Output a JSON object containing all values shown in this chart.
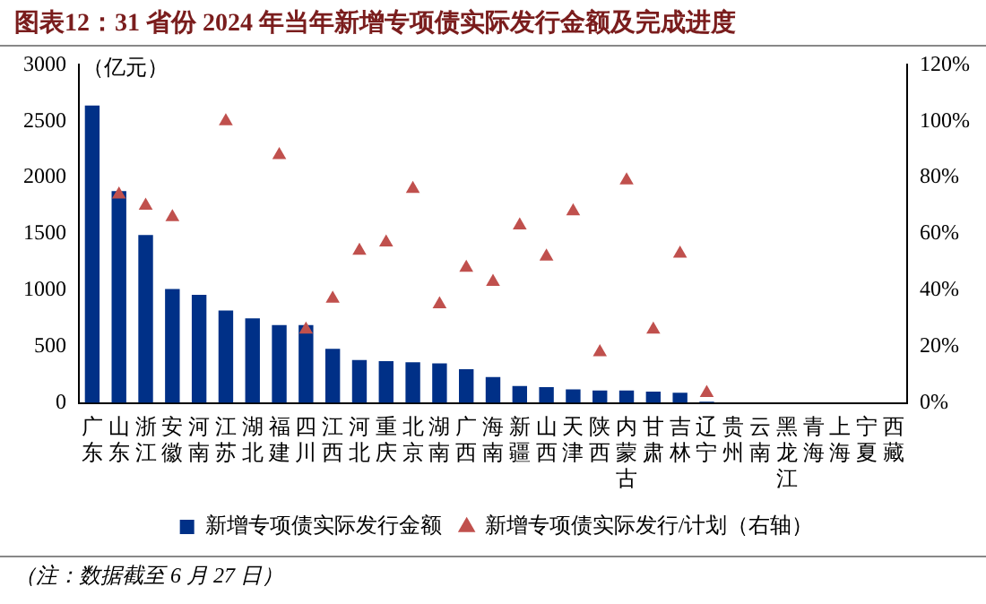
{
  "chart_data": {
    "type": "bar",
    "title": "图表12：31 省份 2024 年当年新增专项债实际发行金额及完成进度",
    "ylabel": "（亿元）",
    "categories": [
      "广东",
      "山东",
      "浙江",
      "安徽",
      "河南",
      "江苏",
      "湖北",
      "福建",
      "四川",
      "江西",
      "河北",
      "重庆",
      "北京",
      "湖南",
      "广西",
      "海南",
      "新疆",
      "山西",
      "天津",
      "陕西",
      "内蒙古",
      "甘肃",
      "吉林",
      "辽宁",
      "贵州",
      "云南",
      "黑龙江",
      "青海",
      "上海",
      "宁夏",
      "西藏"
    ],
    "series": [
      {
        "name": "新增专项债实际发行金额",
        "color": "#003087",
        "values": [
          2640,
          1880,
          1490,
          1010,
          960,
          820,
          750,
          690,
          690,
          480,
          380,
          370,
          360,
          350,
          300,
          230,
          150,
          140,
          120,
          110,
          110,
          100,
          90,
          10,
          null,
          null,
          null,
          null,
          null,
          null,
          null
        ]
      },
      {
        "name": "新增专项债实际发行/计划（右轴）",
        "type": "scatter",
        "axis": "y2",
        "marker": "triangle",
        "color": "#c0504d",
        "values": [
          null,
          74,
          70,
          66,
          null,
          100,
          null,
          88,
          26,
          37,
          54,
          57,
          76,
          35,
          48,
          43,
          63,
          52,
          68,
          18,
          79,
          26,
          53,
          3.5,
          null,
          null,
          null,
          null,
          null,
          null,
          null
        ]
      }
    ],
    "ylim": [
      0,
      3000
    ],
    "yticks": [
      0,
      500,
      1000,
      1500,
      2000,
      2500,
      3000
    ],
    "y2lim": [
      0,
      120
    ],
    "y2ticks": [
      {
        "value": 0,
        "label": "0%"
      },
      {
        "value": 20,
        "label": "20%"
      },
      {
        "value": 40,
        "label": "40%"
      },
      {
        "value": 60,
        "label": "60%"
      },
      {
        "value": 80,
        "label": "80%"
      },
      {
        "value": 100,
        "label": "100%"
      },
      {
        "value": 120,
        "label": "120%"
      }
    ],
    "grid": false,
    "legend": "bottom",
    "annotations": [
      "（注：数据截至 6 月 27 日）"
    ]
  }
}
